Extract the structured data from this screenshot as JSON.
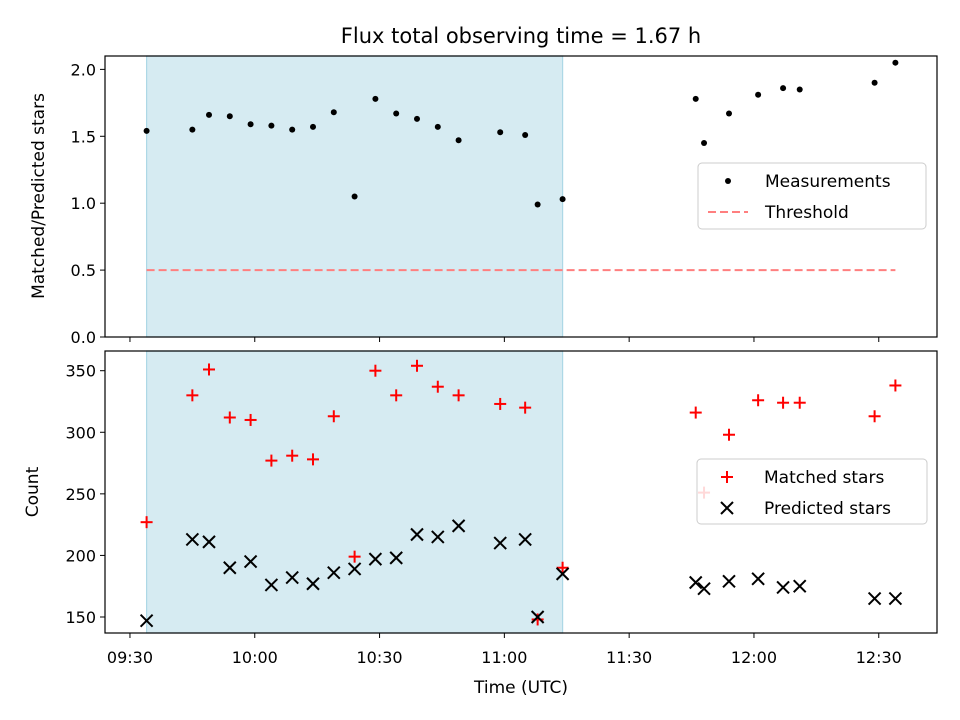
{
  "figure": {
    "title": "Flux total observing time = 1.67 h",
    "xlabel": "Time (UTC)",
    "x_ticks": [
      "09:30",
      "10:00",
      "10:30",
      "11:00",
      "11:30",
      "12:00",
      "12:30"
    ]
  },
  "colors": {
    "measurement": "#000000",
    "threshold": "#ff7f7f",
    "matched": "#ff0000",
    "predicted": "#000000",
    "shade": "#add8e6"
  },
  "chart_data": [
    {
      "type": "scatter",
      "ylabel": "Matched/Predicted stars",
      "ylim": [
        0,
        2.1
      ],
      "y_ticks": [
        "0.0",
        "0.5",
        "1.0",
        "1.5",
        "2.0"
      ],
      "xlim": [
        "09:24",
        "12:44"
      ],
      "shaded_interval": [
        "09:34",
        "11:14"
      ],
      "legend": {
        "placement": "center-right",
        "entries": [
          "Measurements",
          "Threshold"
        ]
      },
      "series": [
        {
          "name": "Measurements",
          "marker": "dot",
          "points": [
            [
              "09:34",
              1.54
            ],
            [
              "09:45",
              1.55
            ],
            [
              "09:49",
              1.66
            ],
            [
              "09:54",
              1.65
            ],
            [
              "09:59",
              1.59
            ],
            [
              "10:04",
              1.58
            ],
            [
              "10:09",
              1.55
            ],
            [
              "10:14",
              1.57
            ],
            [
              "10:19",
              1.68
            ],
            [
              "10:24",
              1.05
            ],
            [
              "10:29",
              1.78
            ],
            [
              "10:34",
              1.67
            ],
            [
              "10:39",
              1.63
            ],
            [
              "10:44",
              1.57
            ],
            [
              "10:49",
              1.47
            ],
            [
              "10:59",
              1.53
            ],
            [
              "11:05",
              1.51
            ],
            [
              "11:08",
              0.99
            ],
            [
              "11:14",
              1.03
            ],
            [
              "11:46",
              1.78
            ],
            [
              "11:48",
              1.45
            ],
            [
              "11:54",
              1.67
            ],
            [
              "12:01",
              1.81
            ],
            [
              "12:07",
              1.86
            ],
            [
              "12:11",
              1.85
            ],
            [
              "12:29",
              1.9
            ],
            [
              "12:34",
              2.05
            ]
          ]
        },
        {
          "name": "Threshold",
          "style": "dashed",
          "x_range": [
            "09:34",
            "12:34"
          ],
          "value": 0.5
        }
      ]
    },
    {
      "type": "scatter",
      "ylabel": "Count",
      "ylim": [
        137,
        366
      ],
      "y_ticks": [
        "150",
        "200",
        "250",
        "300",
        "350"
      ],
      "xlim": [
        "09:24",
        "12:44"
      ],
      "shaded_interval": [
        "09:34",
        "11:14"
      ],
      "legend": {
        "placement": "center-right",
        "entries": [
          "Matched stars",
          "Predicted stars"
        ]
      },
      "series": [
        {
          "name": "Matched stars",
          "marker": "plus",
          "points": [
            [
              "09:34",
              227
            ],
            [
              "09:45",
              330
            ],
            [
              "09:49",
              351
            ],
            [
              "09:54",
              312
            ],
            [
              "09:59",
              310
            ],
            [
              "10:04",
              277
            ],
            [
              "10:09",
              281
            ],
            [
              "10:14",
              278
            ],
            [
              "10:19",
              313
            ],
            [
              "10:24",
              199
            ],
            [
              "10:29",
              350
            ],
            [
              "10:34",
              330
            ],
            [
              "10:39",
              354
            ],
            [
              "10:44",
              337
            ],
            [
              "10:49",
              330
            ],
            [
              "10:59",
              323
            ],
            [
              "11:05",
              320
            ],
            [
              "11:08",
              148
            ],
            [
              "11:14",
              190
            ],
            [
              "11:46",
              316
            ],
            [
              "11:48",
              251
            ],
            [
              "11:54",
              298
            ],
            [
              "12:01",
              326
            ],
            [
              "12:07",
              324
            ],
            [
              "12:11",
              324
            ],
            [
              "12:29",
              313
            ],
            [
              "12:34",
              338
            ]
          ]
        },
        {
          "name": "Predicted stars",
          "marker": "x",
          "points": [
            [
              "09:34",
              147
            ],
            [
              "09:45",
              213
            ],
            [
              "09:49",
              211
            ],
            [
              "09:54",
              190
            ],
            [
              "09:59",
              195
            ],
            [
              "10:04",
              176
            ],
            [
              "10:09",
              182
            ],
            [
              "10:14",
              177
            ],
            [
              "10:19",
              186
            ],
            [
              "10:24",
              189
            ],
            [
              "10:29",
              197
            ],
            [
              "10:34",
              198
            ],
            [
              "10:39",
              217
            ],
            [
              "10:44",
              215
            ],
            [
              "10:49",
              224
            ],
            [
              "10:59",
              210
            ],
            [
              "11:05",
              213
            ],
            [
              "11:08",
              150
            ],
            [
              "11:14",
              185
            ],
            [
              "11:46",
              178
            ],
            [
              "11:48",
              173
            ],
            [
              "11:54",
              179
            ],
            [
              "12:01",
              181
            ],
            [
              "12:07",
              174
            ],
            [
              "12:11",
              175
            ],
            [
              "12:29",
              165
            ],
            [
              "12:34",
              165
            ]
          ]
        }
      ]
    }
  ]
}
